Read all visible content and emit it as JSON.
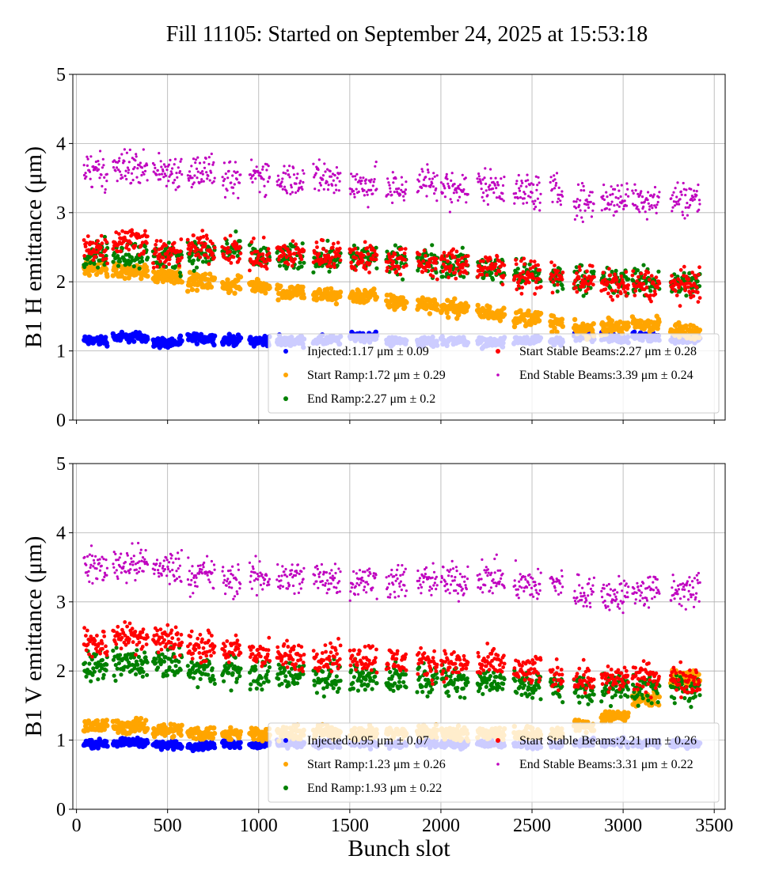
{
  "chart_data": [
    {
      "type": "scatter",
      "title": "Fill 11105: Started on September 24, 2025 at 15:53:18",
      "xlabel": "",
      "ylabel": "B1 H emittance (μm)",
      "xlim": [
        -20,
        3560
      ],
      "ylim": [
        0,
        5
      ],
      "xticks": [
        "0",
        "500",
        "1000",
        "1500",
        "2000",
        "2500",
        "3000",
        "3500"
      ],
      "yticks": [
        "0",
        "1",
        "2",
        "3",
        "4",
        "5"
      ],
      "grid": true,
      "legend_position": "lower-right",
      "trains": [
        [
          40,
          170
        ],
        [
          200,
          390
        ],
        [
          420,
          580
        ],
        [
          610,
          760
        ],
        [
          800,
          900
        ],
        [
          950,
          1060
        ],
        [
          1100,
          1250
        ],
        [
          1300,
          1450
        ],
        [
          1500,
          1650
        ],
        [
          1700,
          1810
        ],
        [
          1870,
          1980
        ],
        [
          2000,
          2150
        ],
        [
          2200,
          2350
        ],
        [
          2400,
          2550
        ],
        [
          2600,
          2670
        ],
        [
          2730,
          2840
        ],
        [
          2880,
          3030
        ],
        [
          3050,
          3200
        ],
        [
          3260,
          3420
        ]
      ],
      "series": [
        {
          "name": "Injected",
          "legend": "Injected:1.17 μm ± 0.09",
          "color": "#0000ff",
          "means": [
            1.15,
            1.2,
            1.12,
            1.18,
            1.16,
            1.15,
            1.14,
            1.15,
            1.2,
            1.14,
            1.13,
            1.15,
            1.12,
            1.14,
            1.13,
            1.2,
            1.18,
            1.2,
            1.18
          ],
          "spread": 0.05
        },
        {
          "name": "Start Ramp",
          "legend": "Start Ramp:1.72 μm ± 0.29",
          "color": "#ffa500",
          "means": [
            2.2,
            2.15,
            2.1,
            2.0,
            1.95,
            1.95,
            1.85,
            1.8,
            1.8,
            1.7,
            1.68,
            1.62,
            1.55,
            1.48,
            1.4,
            1.3,
            1.35,
            1.38,
            1.28
          ],
          "spread": 0.08
        },
        {
          "name": "End Ramp",
          "legend": "End Ramp:2.27 μm ± 0.2",
          "color": "#008000",
          "means": [
            2.4,
            2.4,
            2.35,
            2.4,
            2.45,
            2.35,
            2.35,
            2.35,
            2.35,
            2.3,
            2.3,
            2.25,
            2.2,
            2.1,
            2.05,
            2.05,
            2.0,
            2.0,
            1.98
          ],
          "spread": 0.14
        },
        {
          "name": "Start Stable Beams",
          "legend": "Start Stable Beams:2.27 μm ± 0.28",
          "color": "#ff0000",
          "means": [
            2.5,
            2.6,
            2.4,
            2.5,
            2.45,
            2.35,
            2.4,
            2.4,
            2.35,
            2.3,
            2.25,
            2.25,
            2.2,
            2.1,
            2.05,
            2.05,
            1.95,
            1.95,
            1.95
          ],
          "spread": 0.15
        },
        {
          "name": "End Stable Beams",
          "legend": "End Stable Beams:3.39 μm ± 0.24",
          "color": "#bf00bf",
          "means": [
            3.6,
            3.65,
            3.6,
            3.6,
            3.45,
            3.55,
            3.5,
            3.5,
            3.4,
            3.35,
            3.45,
            3.35,
            3.4,
            3.3,
            3.3,
            3.15,
            3.2,
            3.2,
            3.2
          ],
          "spread": 0.18
        }
      ]
    },
    {
      "type": "scatter",
      "title": "",
      "xlabel": "Bunch slot",
      "ylabel": "B1 V emittance (μm)",
      "xlim": [
        -20,
        3560
      ],
      "ylim": [
        0,
        5
      ],
      "xticks": [
        "0",
        "500",
        "1000",
        "1500",
        "2000",
        "2500",
        "3000",
        "3500"
      ],
      "yticks": [
        "0",
        "1",
        "2",
        "3",
        "4",
        "5"
      ],
      "grid": true,
      "legend_position": "lower-right",
      "trains": [
        [
          40,
          170
        ],
        [
          200,
          390
        ],
        [
          420,
          580
        ],
        [
          610,
          760
        ],
        [
          800,
          900
        ],
        [
          950,
          1060
        ],
        [
          1100,
          1250
        ],
        [
          1300,
          1450
        ],
        [
          1500,
          1650
        ],
        [
          1700,
          1810
        ],
        [
          1870,
          1980
        ],
        [
          2000,
          2150
        ],
        [
          2200,
          2350
        ],
        [
          2400,
          2550
        ],
        [
          2600,
          2670
        ],
        [
          2730,
          2840
        ],
        [
          2880,
          3030
        ],
        [
          3050,
          3200
        ],
        [
          3260,
          3420
        ]
      ],
      "series": [
        {
          "name": "Injected",
          "legend": "Injected:0.95 μm ± 0.07",
          "color": "#0000ff",
          "means": [
            0.95,
            0.97,
            0.93,
            0.92,
            0.95,
            0.93,
            0.95,
            0.94,
            0.95,
            0.94,
            0.95,
            0.94,
            0.95,
            0.94,
            0.95,
            0.97,
            0.96,
            0.95,
            0.95
          ],
          "spread": 0.04
        },
        {
          "name": "Start Ramp",
          "legend": "Start Ramp:1.23 μm ± 0.26",
          "color": "#ffa500",
          "means": [
            1.2,
            1.2,
            1.15,
            1.1,
            1.1,
            1.1,
            1.1,
            1.12,
            1.1,
            1.1,
            1.12,
            1.1,
            1.1,
            1.1,
            1.1,
            1.2,
            1.35,
            1.6,
            1.9
          ],
          "spread": 0.07
        },
        {
          "name": "End Ramp",
          "legend": "End Ramp:1.93 μm ± 0.22",
          "color": "#008000",
          "means": [
            2.05,
            2.1,
            2.1,
            2.0,
            2.0,
            1.95,
            1.95,
            1.9,
            1.9,
            1.9,
            1.9,
            1.85,
            1.85,
            1.8,
            1.75,
            1.75,
            1.75,
            1.75,
            1.75
          ],
          "spread": 0.15
        },
        {
          "name": "Start Stable Beams",
          "legend": "Start Stable Beams:2.21 μm ± 0.26",
          "color": "#ff0000",
          "means": [
            2.4,
            2.5,
            2.45,
            2.35,
            2.3,
            2.25,
            2.2,
            2.2,
            2.2,
            2.15,
            2.1,
            2.1,
            2.1,
            2.0,
            1.95,
            1.9,
            1.88,
            1.9,
            1.88
          ],
          "spread": 0.15
        },
        {
          "name": "End Stable Beams",
          "legend": "End Stable Beams:3.31 μm ± 0.22",
          "color": "#bf00bf",
          "means": [
            3.5,
            3.55,
            3.5,
            3.4,
            3.3,
            3.35,
            3.35,
            3.35,
            3.3,
            3.3,
            3.3,
            3.3,
            3.35,
            3.25,
            3.25,
            3.15,
            3.1,
            3.15,
            3.15
          ],
          "spread": 0.18
        }
      ]
    }
  ]
}
